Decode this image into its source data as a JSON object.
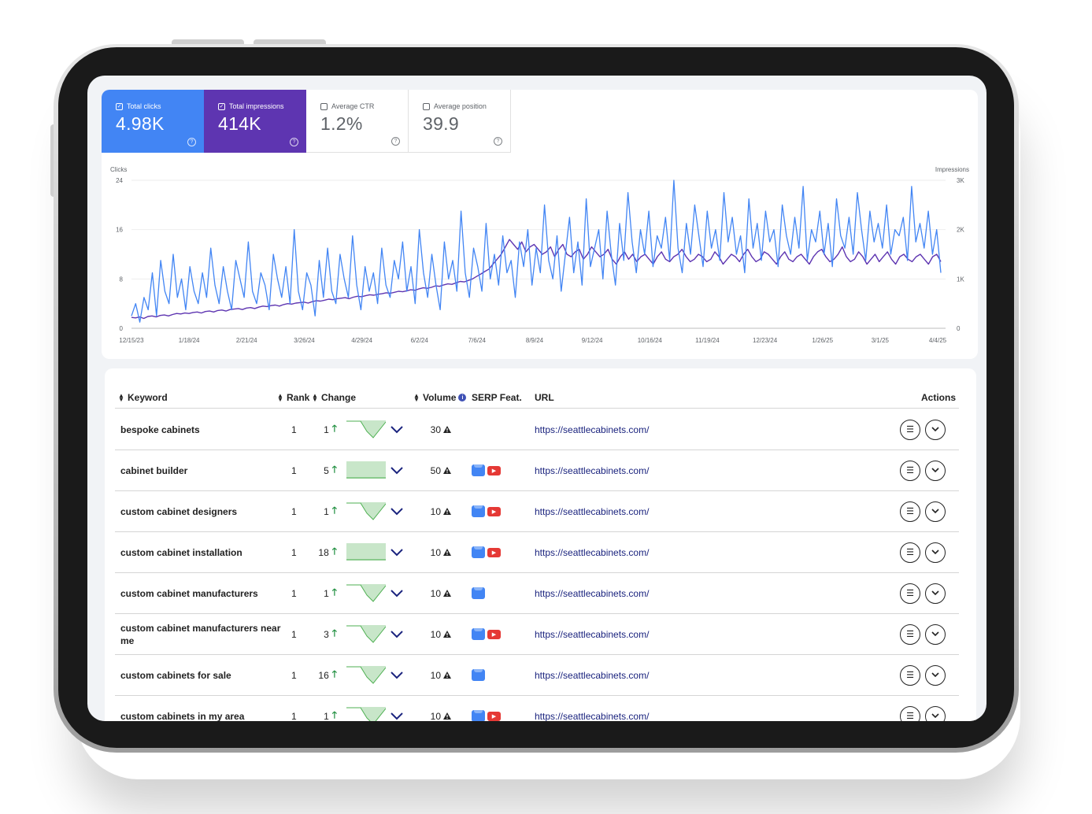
{
  "metrics": {
    "total_clicks": {
      "label": "Total clicks",
      "value": "4.98K",
      "checked": true
    },
    "total_impressions": {
      "label": "Total impressions",
      "value": "414K",
      "checked": true
    },
    "average_ctr": {
      "label": "Average CTR",
      "value": "1.2%",
      "checked": false
    },
    "average_position": {
      "label": "Average position",
      "value": "39.9",
      "checked": false
    }
  },
  "chart_data": {
    "type": "line",
    "left_axis_label": "Clicks",
    "right_axis_label": "Impressions",
    "left_ticks": [
      "24",
      "16",
      "8",
      "0"
    ],
    "right_ticks": [
      "3K",
      "2K",
      "1K",
      "0"
    ],
    "ylim_left": [
      0,
      24
    ],
    "ylim_right": [
      0,
      3000
    ],
    "x_ticks": [
      "12/15/23",
      "1/18/24",
      "2/21/24",
      "3/26/24",
      "4/29/24",
      "6/2/24",
      "7/6/24",
      "8/9/24",
      "9/12/24",
      "10/16/24",
      "11/19/24",
      "12/23/24",
      "1/26/25",
      "3/1/25",
      "4/4/25"
    ],
    "grid": true,
    "series": [
      {
        "name": "Clicks",
        "color": "#4285f4",
        "axis": "left",
        "values": [
          2,
          4,
          1,
          5,
          3,
          9,
          2,
          11,
          6,
          4,
          12,
          5,
          8,
          3,
          10,
          6,
          4,
          9,
          5,
          13,
          7,
          4,
          10,
          6,
          3,
          11,
          8,
          5,
          14,
          6,
          4,
          9,
          7,
          3,
          12,
          8,
          5,
          10,
          4,
          16,
          6,
          3,
          9,
          7,
          2,
          11,
          5,
          13,
          6,
          4,
          12,
          8,
          5,
          15,
          7,
          3,
          10,
          6,
          9,
          4,
          13,
          7,
          5,
          11,
          8,
          14,
          6,
          10,
          4,
          16,
          9,
          5,
          12,
          7,
          3,
          14,
          8,
          11,
          6,
          19,
          9,
          5,
          13,
          10,
          6,
          17,
          8,
          12,
          7,
          15,
          9,
          11,
          5,
          14,
          10,
          16,
          7,
          13,
          9,
          20,
          11,
          8,
          15,
          6,
          12,
          18,
          9,
          14,
          7,
          21,
          10,
          13,
          16,
          8,
          19,
          12,
          7,
          17,
          11,
          22,
          14,
          9,
          16,
          12,
          19,
          10,
          15,
          13,
          18,
          11,
          24,
          13,
          9,
          17,
          12,
          20,
          15,
          10,
          19,
          13,
          16,
          11,
          22,
          14,
          18,
          12,
          15,
          9,
          21,
          13,
          17,
          11,
          19,
          14,
          16,
          10,
          20,
          15,
          12,
          18,
          13,
          23,
          11,
          16,
          14,
          19,
          12,
          17,
          10,
          21,
          15,
          13,
          18,
          12,
          22,
          16,
          11,
          19,
          14,
          17,
          13,
          20,
          12,
          16,
          15,
          18,
          11,
          23,
          14,
          17,
          13,
          19,
          12,
          16,
          9
        ]
      },
      {
        "name": "Impressions",
        "color": "#5e35b1",
        "axis": "right",
        "values": [
          220,
          210,
          230,
          200,
          240,
          250,
          230,
          260,
          270,
          250,
          280,
          300,
          290,
          310,
          300,
          320,
          330,
          310,
          340,
          350,
          330,
          360,
          370,
          350,
          380,
          390,
          400,
          380,
          410,
          420,
          400,
          430,
          450,
          440,
          460,
          470,
          450,
          480,
          500,
          490,
          510,
          520,
          530,
          510,
          540,
          560,
          550,
          570,
          590,
          580,
          600,
          610,
          620,
          600,
          630,
          650,
          640,
          660,
          680,
          670,
          690,
          700,
          720,
          710,
          730,
          750,
          740,
          760,
          780,
          770,
          800,
          820,
          810,
          830,
          860,
          850,
          880,
          900,
          890,
          920,
          950,
          940,
          970,
          1000,
          1050,
          1100,
          1150,
          1200,
          1300,
          1400,
          1500,
          1650,
          1800,
          1700,
          1600,
          1750,
          1550,
          1650,
          1700,
          1600,
          1500,
          1550,
          1650,
          1450,
          1600,
          1700,
          1500,
          1450,
          1550,
          1600,
          1400,
          1500,
          1650,
          1550,
          1450,
          1500,
          1600,
          1400,
          1300,
          1450,
          1550,
          1400,
          1500,
          1350,
          1450,
          1500,
          1400,
          1300,
          1450,
          1550,
          1400,
          1350,
          1450,
          1500,
          1600,
          1450,
          1350,
          1400,
          1500,
          1450,
          1350,
          1400,
          1550,
          1450,
          1300,
          1400,
          1500,
          1450,
          1350,
          1500,
          1600,
          1450,
          1350,
          1400,
          1550,
          1500,
          1400,
          1300,
          1450,
          1550,
          1400,
          1350,
          1450,
          1500,
          1400,
          1300,
          1450,
          1550,
          1600,
          1450,
          1350,
          1400,
          1500,
          1650,
          1450,
          1350,
          1400,
          1550,
          1450,
          1300,
          1400,
          1500,
          1350,
          1450,
          1550,
          1400,
          1300,
          1450,
          1500,
          1400,
          1350,
          1450,
          1500,
          1400,
          1300,
          1450,
          1500,
          1350
        ]
      }
    ]
  },
  "table": {
    "headers": {
      "keyword": "Keyword",
      "rank": "Rank",
      "change": "Change",
      "volume": "Volume",
      "serp": "SERP Feat.",
      "url": "URL",
      "actions": "Actions"
    },
    "rows": [
      {
        "keyword": "bespoke cabinets",
        "rank": "1",
        "change": "1",
        "trend": "dip",
        "volume": "30",
        "serp_map": false,
        "serp_video": false,
        "url": "https://seattlecabinets.com/"
      },
      {
        "keyword": "cabinet builder",
        "rank": "1",
        "change": "5",
        "trend": "flat",
        "volume": "50",
        "serp_map": true,
        "serp_video": true,
        "url": "https://seattlecabinets.com/"
      },
      {
        "keyword": "custom cabinet designers",
        "rank": "1",
        "change": "1",
        "trend": "dip",
        "volume": "10",
        "serp_map": true,
        "serp_video": true,
        "url": "https://seattlecabinets.com/"
      },
      {
        "keyword": "custom cabinet installation",
        "rank": "1",
        "change": "18",
        "trend": "flat",
        "volume": "10",
        "serp_map": true,
        "serp_video": true,
        "url": "https://seattlecabinets.com/"
      },
      {
        "keyword": "custom cabinet manufacturers",
        "rank": "1",
        "change": "1",
        "trend": "dip",
        "volume": "10",
        "serp_map": true,
        "serp_video": false,
        "url": "https://seattlecabinets.com/"
      },
      {
        "keyword": "custom cabinet manufacturers near me",
        "rank": "1",
        "change": "3",
        "trend": "dip",
        "volume": "10",
        "serp_map": true,
        "serp_video": true,
        "url": "https://seattlecabinets.com/"
      },
      {
        "keyword": "custom cabinets for sale",
        "rank": "1",
        "change": "16",
        "trend": "dip",
        "volume": "10",
        "serp_map": true,
        "serp_video": false,
        "url": "https://seattlecabinets.com/"
      },
      {
        "keyword": "custom cabinets in my area",
        "rank": "1",
        "change": "1",
        "trend": "dip",
        "volume": "10",
        "serp_map": true,
        "serp_video": true,
        "url": "https://seattlecabinets.com/"
      }
    ]
  },
  "icons": {
    "sort": "sort-icon",
    "info": "info-icon",
    "up": "arrow-up-icon",
    "expand": "chevron-down-icon",
    "warning": "warning-icon",
    "map": "google-maps-icon",
    "video": "youtube-icon",
    "list": "list-icon",
    "help": "help-icon"
  },
  "colors": {
    "clicks": "#4285f4",
    "impressions": "#5e35b1",
    "positive": "#1e8e3e",
    "link": "#1a237e",
    "trend_fill": "#c8e6c9",
    "trend_stroke": "#4caf50"
  }
}
